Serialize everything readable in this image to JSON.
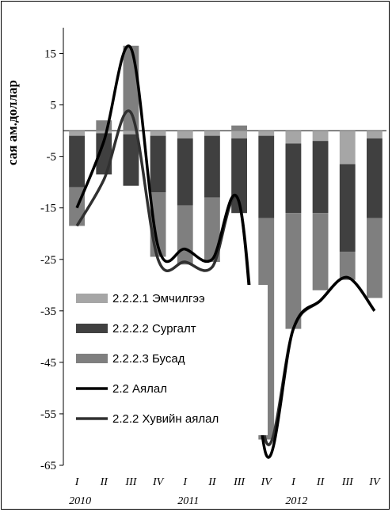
{
  "chart_data": {
    "type": "bar",
    "ylabel": "сая ам.доллар",
    "ylim": [
      -65,
      20
    ],
    "yticks": [
      15,
      5,
      -5,
      -15,
      -25,
      -35,
      -45,
      -55,
      -65
    ],
    "categories": [
      "I",
      "II",
      "III",
      "IV",
      "I",
      "II",
      "III",
      "IV",
      "I",
      "II",
      "III",
      "IV"
    ],
    "years": [
      "2010",
      "2011",
      "2012"
    ],
    "series": [
      {
        "name": "2.2.2.1  Эмчилгээ",
        "kind": "bar",
        "color": "#a6a6a6",
        "values": [
          -1.0,
          -0.5,
          -0.7,
          -1.0,
          -1.5,
          -1.0,
          -1.5,
          -1.0,
          -2.5,
          -2.0,
          -6.5,
          -1.5
        ]
      },
      {
        "name": "2.2.2.2  Сургалт",
        "kind": "bar",
        "color": "#404040",
        "values": [
          -10.0,
          -8.0,
          -10.0,
          -11.0,
          -13.0,
          -12.0,
          -14.5,
          -16.0,
          -13.5,
          -14.0,
          -17.0,
          -15.5
        ]
      },
      {
        "name": "2.2.2.3  Бусад",
        "kind": "bar",
        "color": "#7f7f7f",
        "values": [
          -7.5,
          2.0,
          16.5,
          -12.5,
          -11.5,
          -12.5,
          1.0,
          -43.0,
          -22.5,
          -15.0,
          -5.5,
          -15.5
        ]
      },
      {
        "name": "2.2  Аялал",
        "kind": "line",
        "color": "#000000",
        "values": [
          -15.0,
          -2.0,
          16.0,
          -22.5,
          -23.0,
          -25.0,
          -14.0,
          -63.0,
          -38.5,
          -33.0,
          -28.5,
          -35.0
        ]
      },
      {
        "name": "2.2.2  Хувийн аялал",
        "kind": "line",
        "color": "#303030",
        "values": [
          -18.5,
          -9.5,
          3.5,
          -25.0,
          -25.5,
          -26.5,
          -14.0,
          -60.5,
          -38.5,
          -33.0,
          -28.5,
          -35.0
        ]
      }
    ]
  }
}
